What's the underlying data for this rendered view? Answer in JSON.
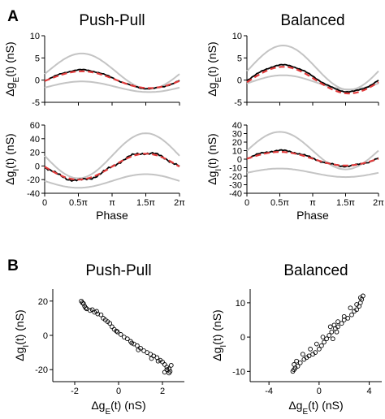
{
  "figure": {
    "panel_a_letter": "A",
    "panel_b_letter": "B",
    "pi_symbol": "π"
  },
  "chart_data": [
    {
      "id": "a_pushpull_ge",
      "type": "line",
      "title": "Push-Pull",
      "xlabel": "",
      "ylabel": "Δg_E(t) (nS)",
      "x_unit": "phase (×π rad)",
      "xlim": [
        0,
        2
      ],
      "ylim": [
        -5,
        10
      ],
      "yticks": [
        -5,
        0,
        5,
        10
      ],
      "xticks": [
        0,
        0.5,
        1,
        1.5,
        2
      ],
      "xticklabels": [],
      "grid": false,
      "curves": [
        {
          "style": "gray",
          "mean": 2,
          "amp": 4,
          "phase_peak": 0.55
        },
        {
          "style": "gray",
          "mean": -1.5,
          "amp": 1.2,
          "phase_peak": 0.55
        },
        {
          "style": "black",
          "mean": 0.2,
          "amp": 2.1,
          "phase_peak": 0.55,
          "noise": 0.15
        },
        {
          "style": "red-dashed",
          "mean": 0.1,
          "amp": 1.9,
          "phase_peak": 0.55
        }
      ]
    },
    {
      "id": "a_balanced_ge",
      "type": "line",
      "title": "Balanced",
      "xlabel": "",
      "ylabel": "Δg_E(t) (nS)",
      "x_unit": "phase (×π rad)",
      "xlim": [
        0,
        2
      ],
      "ylim": [
        -5,
        10
      ],
      "yticks": [
        -5,
        0,
        5,
        10
      ],
      "xticks": [
        0,
        0.5,
        1,
        1.5,
        2
      ],
      "xticklabels": [],
      "grid": false,
      "curves": [
        {
          "style": "gray",
          "mean": 2.8,
          "amp": 5,
          "phase_peak": 0.55
        },
        {
          "style": "gray",
          "mean": -0.5,
          "amp": 1.6,
          "phase_peak": 0.55
        },
        {
          "style": "black",
          "mean": 0.4,
          "amp": 3.0,
          "phase_peak": 0.55,
          "noise": 0.15
        },
        {
          "style": "red-dashed",
          "mean": 0.0,
          "amp": 3.0,
          "phase_peak": 0.55
        }
      ]
    },
    {
      "id": "a_pushpull_gi",
      "type": "line",
      "title": "",
      "xlabel": "Phase",
      "ylabel": "Δg_I(t) (nS)",
      "x_unit": "phase (×π rad)",
      "xlim": [
        0,
        2
      ],
      "ylim": [
        -40,
        60
      ],
      "yticks": [
        -40,
        -20,
        0,
        20,
        40,
        60
      ],
      "xticks": [
        0,
        0.5,
        1,
        1.5,
        2
      ],
      "xticklabels": [
        "0",
        "0.5π",
        "π",
        "1.5π",
        "2π"
      ],
      "grid": false,
      "curves": [
        {
          "style": "gray",
          "mean": 15,
          "amp": 33,
          "phase_peak": 1.5
        },
        {
          "style": "gray",
          "mean": -22,
          "amp": 10,
          "phase_peak": 1.5
        },
        {
          "style": "black",
          "mean": -1,
          "amp": 20,
          "phase_peak": 1.5,
          "noise": 2.5
        },
        {
          "style": "red-dashed",
          "mean": -1,
          "amp": 19,
          "phase_peak": 1.5
        }
      ]
    },
    {
      "id": "a_balanced_gi",
      "type": "line",
      "title": "",
      "xlabel": "Phase",
      "ylabel": "Δg_I(t) (nS)",
      "x_unit": "phase (×π rad)",
      "xlim": [
        0,
        2
      ],
      "ylim": [
        -40,
        40
      ],
      "yticks": [
        -40,
        -30,
        -20,
        -10,
        0,
        10,
        20,
        30,
        40
      ],
      "xticks": [
        0,
        0.5,
        1,
        1.5,
        2
      ],
      "xticklabels": [
        "0",
        "0.5π",
        "π",
        "1.5π",
        "2π"
      ],
      "grid": false,
      "curves": [
        {
          "style": "gray",
          "mean": 10,
          "amp": 22,
          "phase_peak": 0.5
        },
        {
          "style": "gray",
          "mean": -16,
          "amp": 5,
          "phase_peak": 0.5
        },
        {
          "style": "black",
          "mean": 1,
          "amp": 9,
          "phase_peak": 0.5,
          "noise": 1.2
        },
        {
          "style": "red-dashed",
          "mean": 0.5,
          "amp": 8,
          "phase_peak": 0.5
        }
      ]
    },
    {
      "id": "b_pushpull",
      "type": "scatter",
      "title": "Push-Pull",
      "xlabel": "Δg_E(t) (nS)",
      "ylabel": "Δg_I(t) (nS)",
      "xlim": [
        -3,
        3
      ],
      "ylim": [
        -27,
        27
      ],
      "xticks": [
        -2,
        0,
        2
      ],
      "yticks": [
        -20,
        0,
        20
      ],
      "grid": false,
      "points": [
        [
          -1.7,
          20
        ],
        [
          -1.65,
          19
        ],
        [
          -1.6,
          18.5
        ],
        [
          -1.55,
          17
        ],
        [
          -1.5,
          16
        ],
        [
          -1.45,
          15.5
        ],
        [
          -1.3,
          14.5
        ],
        [
          -1.1,
          13.5
        ],
        [
          -0.95,
          12.5
        ],
        [
          -0.8,
          12
        ],
        [
          -0.7,
          10
        ],
        [
          -0.5,
          8
        ],
        [
          -0.4,
          7
        ],
        [
          -0.3,
          5
        ],
        [
          -0.2,
          3.5
        ],
        [
          -0.05,
          2
        ],
        [
          0.1,
          0.5
        ],
        [
          0.25,
          -1
        ],
        [
          0.4,
          -2
        ],
        [
          0.55,
          -3.5
        ],
        [
          0.7,
          -5
        ],
        [
          0.85,
          -6
        ],
        [
          1.0,
          -7.5
        ],
        [
          1.15,
          -9
        ],
        [
          1.3,
          -10
        ],
        [
          1.45,
          -11
        ],
        [
          1.6,
          -12
        ],
        [
          1.75,
          -13
        ],
        [
          1.9,
          -14.5
        ],
        [
          2.0,
          -15.5
        ],
        [
          2.1,
          -17
        ],
        [
          2.2,
          -18.5
        ],
        [
          2.3,
          -19.5
        ],
        [
          2.35,
          -21
        ],
        [
          2.3,
          -22
        ],
        [
          2.2,
          -20
        ],
        [
          2.1,
          -21.5
        ],
        [
          2.4,
          -17.5
        ],
        [
          1.8,
          -15
        ],
        [
          1.5,
          -13.5
        ],
        [
          0.9,
          -8.5
        ],
        [
          0.6,
          -4.5
        ],
        [
          -0.1,
          2.5
        ],
        [
          -0.6,
          9
        ],
        [
          -1.2,
          15
        ],
        [
          -1.0,
          14
        ]
      ]
    },
    {
      "id": "b_balanced",
      "type": "scatter",
      "title": "Balanced",
      "xlabel": "Δg_E(t) (nS)",
      "ylabel": "Δg_I(t) (nS)",
      "xlim": [
        -5.5,
        5
      ],
      "ylim": [
        -13,
        14
      ],
      "xticks": [
        -4,
        0,
        4
      ],
      "yticks": [
        -10,
        0,
        10
      ],
      "grid": false,
      "points": [
        [
          -2.1,
          -10
        ],
        [
          -2.0,
          -9.5
        ],
        [
          -1.9,
          -9
        ],
        [
          -1.7,
          -8.5
        ],
        [
          -1.5,
          -7.5
        ],
        [
          -1.2,
          -6.5
        ],
        [
          -1.0,
          -6
        ],
        [
          -0.8,
          -5.5
        ],
        [
          -0.5,
          -5
        ],
        [
          -0.3,
          -4.5
        ],
        [
          0.0,
          -3.5
        ],
        [
          0.2,
          -2.5
        ],
        [
          0.4,
          -1.5
        ],
        [
          0.6,
          -0.5
        ],
        [
          0.8,
          0.5
        ],
        [
          1.0,
          1.5
        ],
        [
          1.3,
          2.5
        ],
        [
          1.5,
          3
        ],
        [
          1.8,
          4
        ],
        [
          2.0,
          5
        ],
        [
          2.3,
          5.5
        ],
        [
          2.6,
          6.5
        ],
        [
          2.8,
          7.5
        ],
        [
          3.0,
          8
        ],
        [
          3.2,
          9
        ],
        [
          3.3,
          10
        ],
        [
          3.4,
          11
        ],
        [
          3.5,
          12
        ],
        [
          3.3,
          11.5
        ],
        [
          3.0,
          9.5
        ],
        [
          2.5,
          8.5
        ],
        [
          2.0,
          6
        ],
        [
          1.5,
          4.5
        ],
        [
          1.2,
          3.5
        ],
        [
          0.9,
          3
        ],
        [
          0.3,
          0
        ],
        [
          -0.2,
          -2
        ],
        [
          -0.7,
          -3.5
        ],
        [
          -1.3,
          -5
        ],
        [
          -1.8,
          -7
        ],
        [
          -2.0,
          -8
        ],
        [
          1.1,
          -0.5
        ],
        [
          1.4,
          1.5
        ]
      ]
    }
  ]
}
